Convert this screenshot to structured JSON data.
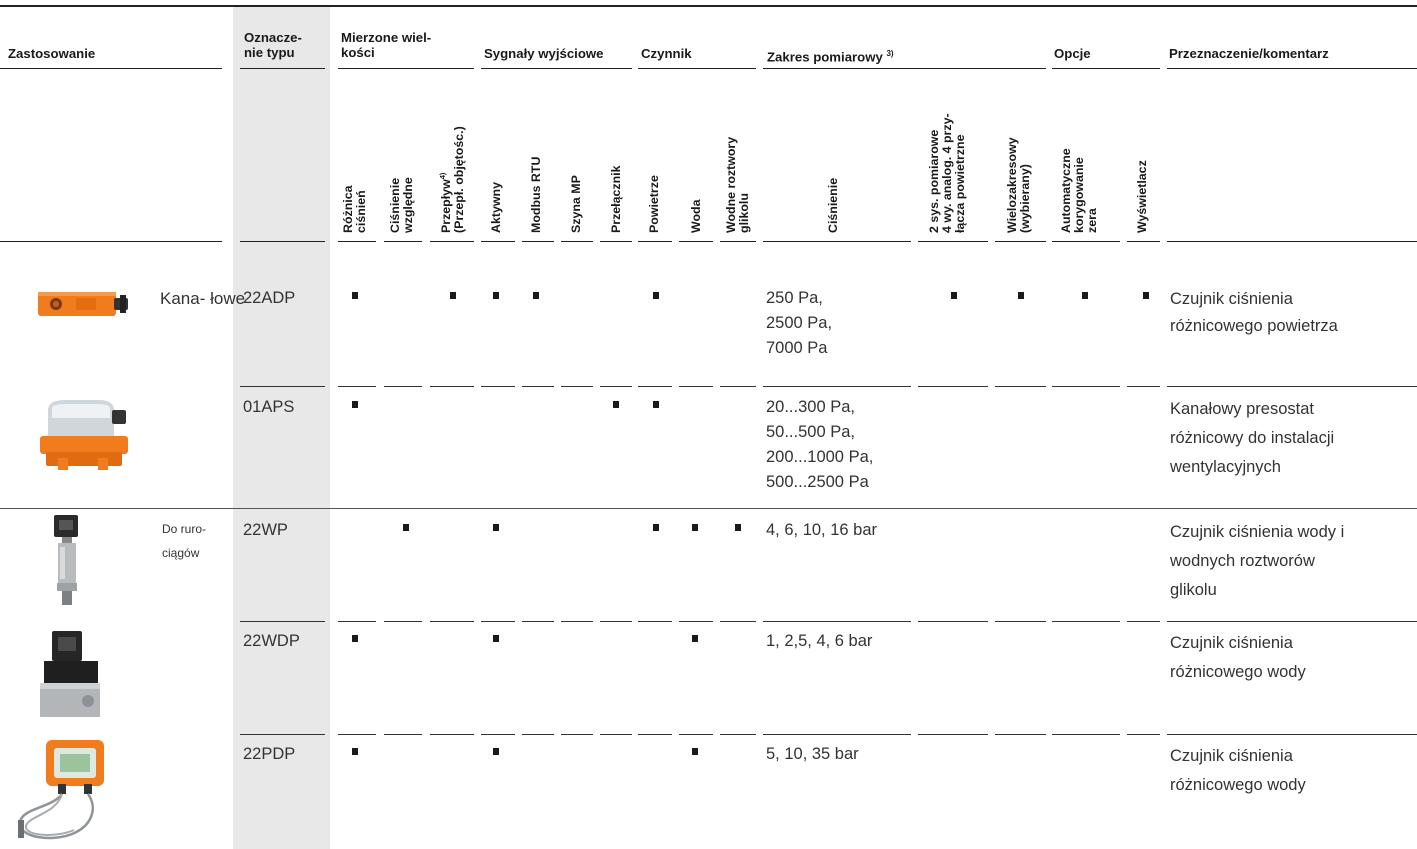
{
  "headers": {
    "zastosowanie": "Zastosowanie",
    "oznaczenie_l1": "Oznacze-",
    "oznaczenie_l2": "nie typu",
    "mierzone_l1": "Mierzone wiel-",
    "mierzone_l2": "kości",
    "sygnaly": "Sygnały wyjściowe",
    "czynnik": "Czynnik",
    "zakres": "Zakres pomiarowy",
    "zakres_note": "3)",
    "opcje": "Opcje",
    "przeznaczenie": "Przeznaczenie/komentarz"
  },
  "columns": {
    "roznica": "Różnica\nciśnień",
    "cisnienie_wzgl": "Ciśnienie\nwzględne",
    "przeplyw": "Przepływ",
    "przeplyw_note": "4)",
    "przeplyw_l2": "(Przepł. objętośc.)",
    "aktywny": "Aktywny",
    "modbus": "Modbus RTU",
    "szyna": "Szyna MP",
    "przelacznik": "Przełącznik",
    "powietrze": "Powietrze",
    "woda": "Woda",
    "glikol": "Wodne roztwory\nglikolu",
    "cisnienie": "Ciśnienie",
    "dwa_sys": "2 sys. pomiarowe\n4 wy. analog. 4 przy-\nłącza powietrzne",
    "wielozakres": "Wielozakresowy\n(wybierany)",
    "auto_zero": "Automatyczne\nkorygowanie\nzera",
    "wyswietlacz": "Wyświetlacz"
  },
  "rows": [
    {
      "application": "Kana-\nłowe",
      "type": "22ADP",
      "range": [
        "250 Pa,",
        "2500 Pa,",
        "7000 Pa"
      ],
      "comment": [
        "Czujnik ciśnienia",
        "różnicowego powietrza"
      ]
    },
    {
      "application": "",
      "type": "01APS",
      "range": [
        "20...300 Pa,",
        "50...500 Pa,",
        "200...1000 Pa,",
        "500...2500 Pa"
      ],
      "comment": [
        "Kanałowy presostat",
        "różnicowy do instalacji",
        "wentylacyjnych"
      ]
    },
    {
      "application": "Do ruro-\nciągów",
      "type": "22WP",
      "range": [
        "4, 6, 10, 16 bar"
      ],
      "comment": [
        "Czujnik ciśnienia wody i",
        "wodnych roztworów",
        "glikolu"
      ]
    },
    {
      "application": "",
      "type": "22WDP",
      "range": [
        "1, 2,5, 4, 6 bar"
      ],
      "comment": [
        "Czujnik ciśnienia",
        "różnicowego wody"
      ]
    },
    {
      "application": "",
      "type": "22PDP",
      "range": [
        "5, 10, 35 bar"
      ],
      "comment": [
        "Czujnik ciśnienia",
        "różnicowego wody"
      ]
    }
  ],
  "marks": [
    [
      "roznica",
      "przeplyw",
      "aktywny",
      "modbus",
      "powietrze",
      "dwa_sys",
      "wielozakres",
      "auto_zero",
      "wyswietlacz"
    ],
    [
      "roznica",
      "przelacznik",
      "powietrze"
    ],
    [
      "cisnienie_wzgl",
      "aktywny",
      "powietrze",
      "woda",
      "glikol"
    ],
    [
      "roznica",
      "aktywny",
      "woda"
    ],
    [
      "roznica",
      "aktywny",
      "woda"
    ]
  ],
  "colors": {
    "type_column_bg": "#e8e8e8",
    "device_orange": "#f07c1e"
  }
}
